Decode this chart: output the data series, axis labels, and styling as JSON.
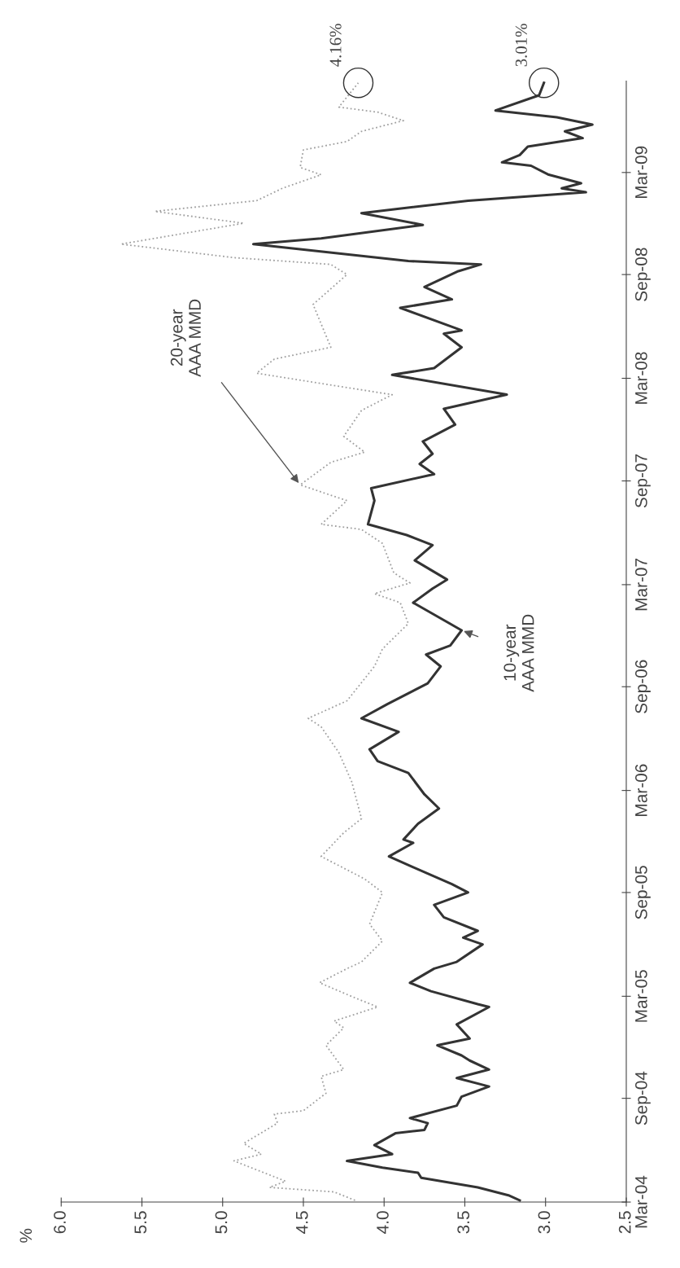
{
  "chart_data": {
    "type": "line",
    "orientation": "horizontal",
    "ylabel": "%",
    "ylim": [
      "2004-03-01",
      "2009-08-10"
    ],
    "yticks": [
      {
        "value": "2004-03-01",
        "label": "Mar-04"
      },
      {
        "value": "2004-09-01",
        "label": "Sep-04"
      },
      {
        "value": "2005-03-01",
        "label": "Mar-05"
      },
      {
        "value": "2005-09-01",
        "label": "Sep-05"
      },
      {
        "value": "2006-03-01",
        "label": "Mar-06"
      },
      {
        "value": "2006-09-01",
        "label": "Sep-06"
      },
      {
        "value": "2007-03-01",
        "label": "Mar-07"
      },
      {
        "value": "2007-09-01",
        "label": "Sep-07"
      },
      {
        "value": "2008-03-01",
        "label": "Mar-08"
      },
      {
        "value": "2008-09-01",
        "label": "Sep-08"
      },
      {
        "value": "2009-03-01",
        "label": "Mar-09"
      }
    ],
    "xlim": [
      6.0,
      2.5
    ],
    "xticks": [
      {
        "value": 2.5,
        "label": "2.5"
      },
      {
        "value": 3.0,
        "label": "3.0"
      },
      {
        "value": 3.5,
        "label": "3.5"
      },
      {
        "value": 4.0,
        "label": "4.0"
      },
      {
        "value": 4.5,
        "label": "4.5"
      },
      {
        "value": 5.0,
        "label": "5.0"
      },
      {
        "value": 5.5,
        "label": "5.5"
      },
      {
        "value": 6.0,
        "label": "6.0"
      }
    ],
    "annotations": [
      {
        "text": "4.16%",
        "x": 4.16,
        "y": "2009-08-07"
      },
      {
        "text": "3.01%",
        "x": 3.01,
        "y": "2009-08-07"
      }
    ],
    "series": [
      {
        "name": "20-year AAA MMD",
        "color": "#a0a0a0",
        "line_style": "dotted",
        "x": [
          "2004-03-04",
          "2004-03-19",
          "2004-03-27",
          "2004-04-07",
          "2004-05-13",
          "2004-05-25",
          "2004-06-13",
          "2004-07-19",
          "2004-08-04",
          "2004-08-10",
          "2004-09-10",
          "2004-10-10",
          "2004-10-22",
          "2004-12-04",
          "2005-01-04",
          "2005-01-16",
          "2005-02-10",
          "2005-02-25",
          "2005-03-25",
          "2005-04-19",
          "2005-05-01",
          "2005-06-07",
          "2005-07-07",
          "2005-09-01",
          "2005-09-25",
          "2005-11-04",
          "2005-12-16",
          "2006-01-10",
          "2006-03-16",
          "2006-05-07",
          "2006-06-22",
          "2006-07-07",
          "2006-08-07",
          "2006-10-07",
          "2006-11-07",
          "2006-12-22",
          "2007-01-28",
          "2007-02-13",
          "2007-03-04",
          "2007-03-22",
          "2007-05-13",
          "2007-06-07",
          "2007-06-16",
          "2007-07-28",
          "2007-08-25",
          "2007-10-04",
          "2007-10-22",
          "2007-11-19",
          "2008-01-04",
          "2008-02-01",
          "2008-03-10",
          "2008-04-04",
          "2008-04-25",
          "2008-07-10",
          "2008-09-01",
          "2008-09-19",
          "2008-10-01",
          "2008-10-25",
          "2008-12-01",
          "2008-12-22",
          "2009-01-10",
          "2009-02-01",
          "2009-02-25",
          "2009-03-10",
          "2009-04-10",
          "2009-04-25",
          "2009-05-13",
          "2009-06-01",
          "2009-06-16",
          "2009-06-25",
          "2009-08-07"
        ],
        "values": [
          4.18,
          4.31,
          4.71,
          4.61,
          4.93,
          4.76,
          4.87,
          4.66,
          4.68,
          4.5,
          4.36,
          4.39,
          4.25,
          4.36,
          4.25,
          4.31,
          4.04,
          4.17,
          4.4,
          4.23,
          4.14,
          4.01,
          4.09,
          4.01,
          4.12,
          4.39,
          4.25,
          4.14,
          4.2,
          4.28,
          4.39,
          4.47,
          4.23,
          4.06,
          4.01,
          3.85,
          3.9,
          4.06,
          3.84,
          3.94,
          4.01,
          4.14,
          4.39,
          4.23,
          4.52,
          4.33,
          4.12,
          4.25,
          4.14,
          3.95,
          4.79,
          4.68,
          4.33,
          4.44,
          4.23,
          4.33,
          4.93,
          5.63,
          4.87,
          5.42,
          4.79,
          4.63,
          4.39,
          4.52,
          4.5,
          4.23,
          4.14,
          3.88,
          4.04,
          4.28,
          4.16
        ]
      },
      {
        "name": "10-year AAA MMD",
        "color": "#333333",
        "line_style": "solid",
        "x": [
          "2004-03-04",
          "2004-03-13",
          "2004-03-27",
          "2004-04-13",
          "2004-04-22",
          "2004-05-01",
          "2004-05-13",
          "2004-05-25",
          "2004-06-10",
          "2004-07-01",
          "2004-07-07",
          "2004-07-19",
          "2004-07-28",
          "2004-08-19",
          "2004-09-04",
          "2004-09-22",
          "2004-10-07",
          "2004-10-22",
          "2004-11-07",
          "2004-11-16",
          "2004-12-04",
          "2004-12-16",
          "2005-01-10",
          "2005-02-10",
          "2005-02-15",
          "2005-03-10",
          "2005-03-25",
          "2005-04-19",
          "2005-05-01",
          "2005-06-01",
          "2005-06-13",
          "2005-06-25",
          "2005-07-19",
          "2005-08-10",
          "2005-09-01",
          "2005-09-16",
          "2005-10-16",
          "2005-11-04",
          "2005-11-28",
          "2005-12-04",
          "2006-01-01",
          "2006-01-28",
          "2006-02-22",
          "2006-04-01",
          "2006-04-22",
          "2006-05-13",
          "2006-06-13",
          "2006-07-07",
          "2006-08-01",
          "2006-09-07",
          "2006-10-07",
          "2006-10-28",
          "2006-11-13",
          "2006-12-10",
          "2006-12-28",
          "2007-01-28",
          "2007-02-22",
          "2007-03-10",
          "2007-04-13",
          "2007-05-10",
          "2007-05-28",
          "2007-06-16",
          "2007-07-28",
          "2007-08-19",
          "2007-09-13",
          "2007-10-01",
          "2007-10-19",
          "2007-11-10",
          "2007-12-10",
          "2008-01-07",
          "2008-02-01",
          "2008-03-07",
          "2008-03-19",
          "2008-04-25",
          "2008-05-19",
          "2008-05-25",
          "2008-07-04",
          "2008-07-19",
          "2008-08-10",
          "2008-09-07",
          "2008-09-19",
          "2008-09-25",
          "2008-10-25",
          "2008-11-04",
          "2008-11-28",
          "2008-12-19",
          "2009-01-10",
          "2009-01-25",
          "2009-02-01",
          "2009-02-10",
          "2009-02-25",
          "2009-03-13",
          "2009-03-19",
          "2009-04-01",
          "2009-04-16",
          "2009-05-01",
          "2009-05-13",
          "2009-05-25",
          "2009-06-07",
          "2009-06-19",
          "2009-07-16",
          "2009-08-07"
        ],
        "values": [
          3.16,
          3.23,
          3.42,
          3.77,
          3.79,
          4.01,
          4.23,
          3.95,
          4.06,
          3.93,
          3.75,
          3.73,
          3.84,
          3.55,
          3.52,
          3.35,
          3.55,
          3.35,
          3.47,
          3.52,
          3.67,
          3.47,
          3.55,
          3.35,
          3.42,
          3.71,
          3.84,
          3.69,
          3.55,
          3.39,
          3.51,
          3.42,
          3.63,
          3.69,
          3.48,
          3.58,
          3.82,
          3.97,
          3.82,
          3.88,
          3.79,
          3.66,
          3.75,
          3.85,
          4.04,
          4.09,
          3.91,
          4.14,
          3.98,
          3.73,
          3.65,
          3.74,
          3.59,
          3.52,
          3.63,
          3.82,
          3.7,
          3.61,
          3.81,
          3.7,
          3.86,
          4.1,
          4.06,
          4.08,
          3.69,
          3.78,
          3.7,
          3.76,
          3.56,
          3.63,
          3.24,
          3.95,
          3.69,
          3.52,
          3.63,
          3.52,
          3.9,
          3.58,
          3.75,
          3.54,
          3.4,
          3.85,
          4.81,
          4.39,
          3.76,
          4.14,
          3.48,
          2.75,
          2.9,
          2.78,
          2.98,
          3.09,
          3.27,
          3.16,
          3.11,
          2.77,
          2.88,
          2.71,
          2.93,
          3.31,
          3.04,
          3.01
        ]
      }
    ]
  }
}
